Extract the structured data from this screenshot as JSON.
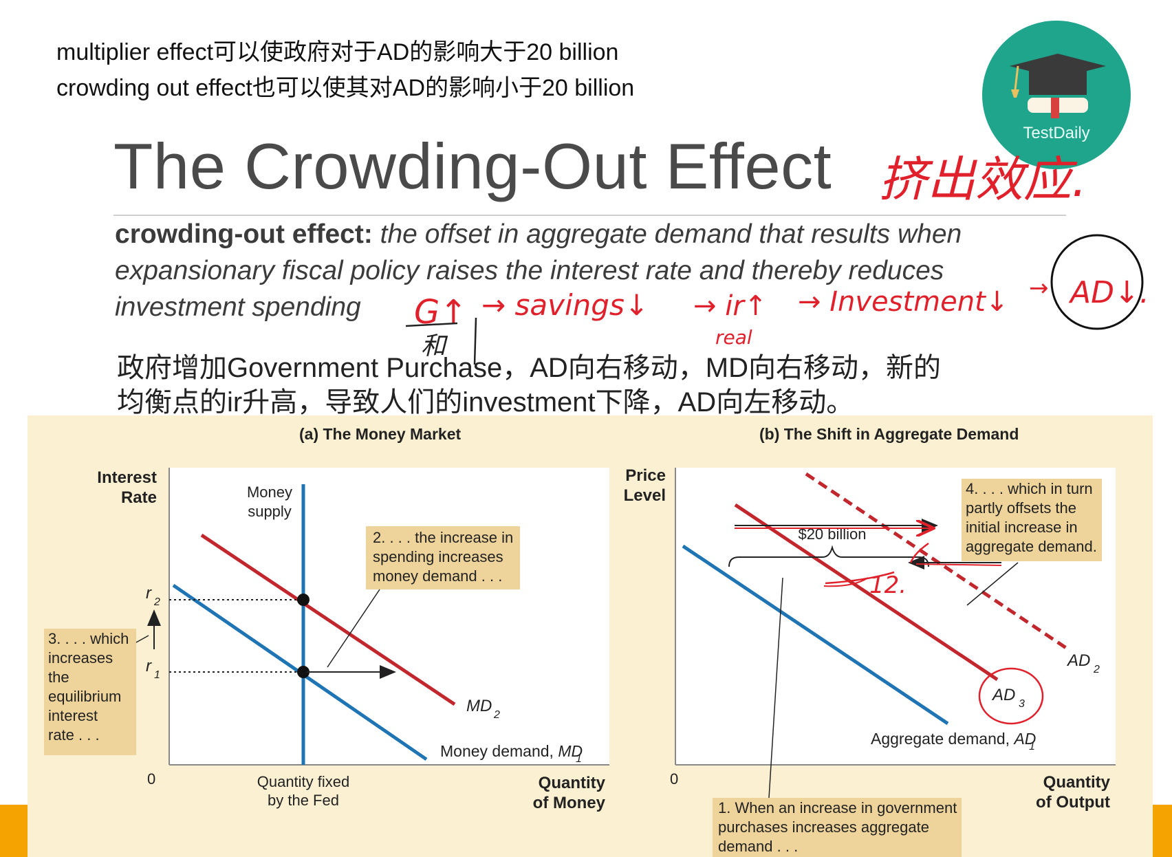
{
  "header_notes": [
    "multiplier effect可以使政府对于AD的影响大于20 billion",
    "crowding out effect也可以使其对AD的影响小于20 billion"
  ],
  "logo": {
    "text": "TestDaily",
    "color": "#1fa58c"
  },
  "slide": {
    "title": "The Crowding-Out Effect",
    "definition_term": "crowding-out effect:",
    "definition_body": " the offset in aggregate demand that results when expansionary fiscal policy raises the interest rate and thereby reduces investment spending"
  },
  "chinese_explanation": [
    "政府增加Government Purchase，AD向右移动，MD向右移动，新的",
    "均衡点的ir升高，导致人们的investment下降，AD向左移动。"
  ],
  "handwritten": {
    "title_cn": "挤出效应.",
    "chain": [
      "G↑",
      "→ savings↓",
      "→ ir↑",
      "→ Investment↓",
      "→",
      "AD↓."
    ],
    "real": "real",
    "g_note": "和",
    "ad2_label": "12."
  },
  "panel_a": {
    "title": "(a) The Money Market",
    "y_axis_label": [
      "Interest",
      "Rate"
    ],
    "x_axis_label": [
      "Quantity",
      "of Money"
    ],
    "origin": "0",
    "money_supply_label": [
      "Money",
      "supply"
    ],
    "x_tick": [
      "Quantity fixed",
      "by the Fed"
    ],
    "r2": "r",
    "r2_sub": "2",
    "r1": "r",
    "r1_sub": "1",
    "md1_label": "Money demand, ",
    "md1_var": "MD",
    "md1_sub": "1",
    "md2_var": "MD",
    "md2_sub": "2",
    "note_2": [
      "2. . . . the increase in",
      "spending increases",
      "money demand . . ."
    ],
    "note_3": [
      "3. . . . which",
      "increases",
      "the",
      "equilibrium",
      "interest",
      "rate . . ."
    ]
  },
  "panel_b": {
    "title": "(b) The Shift in Aggregate Demand",
    "y_axis_label": [
      "Price",
      "Level"
    ],
    "x_axis_label": [
      "Quantity",
      "of Output"
    ],
    "origin": "0",
    "shift_label": "$20 billion",
    "ad1_label": "Aggregate demand, ",
    "ad1_var": "AD",
    "ad1_sub": "1",
    "ad2_var": "AD",
    "ad2_sub": "2",
    "ad3_var": "AD",
    "ad3_sub": "3",
    "note_4": [
      "4. . . . which in turn",
      "partly offsets the",
      "initial increase in",
      "aggregate demand."
    ],
    "note_1": [
      "1. When an increase in government",
      "purchases increases aggregate",
      "demand . . ."
    ]
  },
  "colors": {
    "red_curve": "#c1272d",
    "blue_curve": "#1f74b4",
    "annotation_red": "#e0202a",
    "panel_bg": "#fbf1d2",
    "note_box": "#eed49b",
    "orange_strip": "#f5a300"
  }
}
